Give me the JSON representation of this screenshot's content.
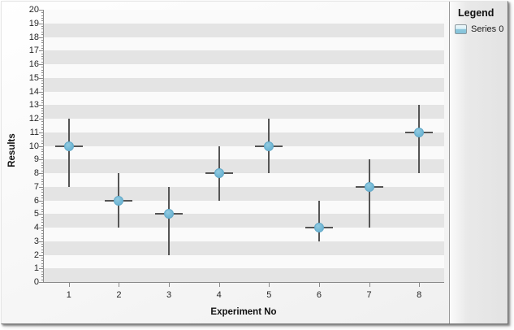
{
  "chart_data": {
    "type": "scatter",
    "subtype": "error-bar-points",
    "xlabel": "Experiment No",
    "ylabel": "Results",
    "x_ticks": [
      1,
      2,
      3,
      4,
      5,
      6,
      7,
      8
    ],
    "ylim": [
      0,
      20
    ],
    "y_tick_step": 1,
    "y_minor_tick_step": 0.2,
    "grid": "interlaced-horizontal-stripes",
    "legend_position": "right",
    "series": [
      {
        "name": "Series 0",
        "marker": "circle",
        "marker_color": "#74b9d6",
        "error_bar_color": "#555555",
        "points": [
          {
            "x": 1,
            "y": 10,
            "low": 7,
            "high": 12
          },
          {
            "x": 2,
            "y": 6,
            "low": 4,
            "high": 8
          },
          {
            "x": 3,
            "y": 5,
            "low": 2,
            "high": 7
          },
          {
            "x": 4,
            "y": 8,
            "low": 6,
            "high": 10
          },
          {
            "x": 5,
            "y": 10,
            "low": 8,
            "high": 12
          },
          {
            "x": 6,
            "y": 4,
            "low": 3,
            "high": 6
          },
          {
            "x": 7,
            "y": 7,
            "low": 4,
            "high": 9
          },
          {
            "x": 8,
            "y": 11,
            "low": 8,
            "high": 13
          }
        ]
      }
    ]
  },
  "legend": {
    "title": "Legend",
    "items": [
      {
        "label": "Series 0",
        "swatch_color": "#8cc7dc"
      }
    ]
  },
  "colors": {
    "stripe": "#e4e4e4",
    "plot_background": "#fafafa",
    "axis_line": "#8a8a8a",
    "tick_label": "#262626",
    "error_bar": "#555555",
    "marker": "#74b9d6",
    "legend_panel_border": "#9a9a9a"
  }
}
